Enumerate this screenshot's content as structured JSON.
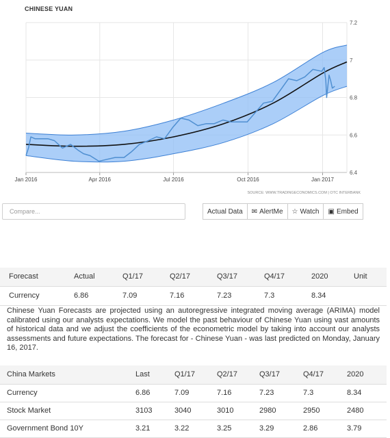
{
  "chart_data": {
    "type": "line",
    "title": "CHINESE YUAN",
    "source": "SOURCE: WWW.TRADINGECONOMICS.COM | OTC INTERBANK",
    "x_ticks": [
      "Jan 2016",
      "Apr 2016",
      "Jul 2016",
      "Oct 2016",
      "Jan 2017"
    ],
    "y_ticks": [
      "6.4",
      "6.6",
      "6.8",
      "7",
      "7.2"
    ],
    "ylim": [
      6.4,
      7.2
    ],
    "xlim": [
      "2016-01-01",
      "2017-01-31"
    ],
    "grid": true,
    "colors": {
      "line": "#4f8fd1",
      "band": "#8fbef5",
      "band_edge": "#3b7fd4",
      "trend": "#111111"
    },
    "series": [
      {
        "values": [
          [
            "2016-01-01",
            6.49
          ],
          [
            "2016-01-04",
            6.53
          ],
          [
            "2016-01-07",
            6.59
          ],
          [
            "2016-01-12",
            6.58
          ],
          [
            "2016-01-20",
            6.58
          ],
          [
            "2016-01-28",
            6.58
          ],
          [
            "2016-02-05",
            6.57
          ],
          [
            "2016-02-15",
            6.53
          ],
          [
            "2016-02-25",
            6.55
          ],
          [
            "2016-03-05",
            6.52
          ],
          [
            "2016-03-12",
            6.5
          ],
          [
            "2016-03-20",
            6.49
          ],
          [
            "2016-03-31",
            6.46
          ],
          [
            "2016-04-10",
            6.47
          ],
          [
            "2016-04-20",
            6.48
          ],
          [
            "2016-05-01",
            6.48
          ],
          [
            "2016-05-10",
            6.51
          ],
          [
            "2016-05-20",
            6.55
          ],
          [
            "2016-05-31",
            6.57
          ],
          [
            "2016-06-10",
            6.59
          ],
          [
            "2016-06-20",
            6.58
          ],
          [
            "2016-06-30",
            6.64
          ],
          [
            "2016-07-10",
            6.69
          ],
          [
            "2016-07-20",
            6.68
          ],
          [
            "2016-07-31",
            6.65
          ],
          [
            "2016-08-10",
            6.66
          ],
          [
            "2016-08-20",
            6.66
          ],
          [
            "2016-08-31",
            6.68
          ],
          [
            "2016-09-10",
            6.67
          ],
          [
            "2016-09-20",
            6.67
          ],
          [
            "2016-09-30",
            6.67
          ],
          [
            "2016-10-10",
            6.72
          ],
          [
            "2016-10-20",
            6.77
          ],
          [
            "2016-10-31",
            6.78
          ],
          [
            "2016-11-10",
            6.84
          ],
          [
            "2016-11-20",
            6.9
          ],
          [
            "2016-11-30",
            6.89
          ],
          [
            "2016-12-10",
            6.91
          ],
          [
            "2016-12-20",
            6.95
          ],
          [
            "2016-12-31",
            6.94
          ],
          [
            "2017-01-03",
            6.96
          ],
          [
            "2017-01-05",
            6.89
          ],
          [
            "2017-01-06",
            6.8
          ],
          [
            "2017-01-09",
            6.92
          ],
          [
            "2017-01-11",
            6.89
          ],
          [
            "2017-01-13",
            6.85
          ],
          [
            "2017-01-16",
            6.86
          ]
        ]
      }
    ],
    "trend": [
      [
        "2016-01-01",
        6.55
      ],
      [
        "2016-03-01",
        6.54
      ],
      [
        "2016-05-01",
        6.55
      ],
      [
        "2016-07-01",
        6.59
      ],
      [
        "2016-09-01",
        6.66
      ],
      [
        "2016-11-01",
        6.77
      ],
      [
        "2017-01-01",
        6.93
      ],
      [
        "2017-01-31",
        6.99
      ]
    ],
    "band": [
      [
        "2016-01-01",
        6.49,
        6.61
      ],
      [
        "2016-03-01",
        6.46,
        6.6
      ],
      [
        "2016-05-01",
        6.46,
        6.62
      ],
      [
        "2016-07-01",
        6.5,
        6.68
      ],
      [
        "2016-09-01",
        6.56,
        6.77
      ],
      [
        "2016-11-01",
        6.66,
        6.88
      ],
      [
        "2017-01-01",
        6.81,
        7.04
      ],
      [
        "2017-01-31",
        6.86,
        7.08
      ]
    ]
  },
  "toolbar": {
    "compare_placeholder": "Compare...",
    "actual_data": "Actual Data",
    "alertme": "AlertMe",
    "watch": "Watch",
    "embed": "Embed"
  },
  "forecast": {
    "headers": [
      "Forecast",
      "Actual",
      "Q1/17",
      "Q2/17",
      "Q3/17",
      "Q4/17",
      "2020",
      "Unit"
    ],
    "row": [
      "Currency",
      "6.86",
      "7.09",
      "7.16",
      "7.23",
      "7.3",
      "8.34",
      ""
    ],
    "description": "Chinese Yuan Forecasts are projected using an autoregressive integrated moving average (ARIMA) model calibrated using our analysts expectations. We model the past behaviour of Chinese Yuan using vast amounts of historical data and we adjust the coefficients of the econometric model by taking into account our analysts assessments and future expectations. The forecast for - Chinese Yuan - was last predicted on Monday, January 16, 2017."
  },
  "markets": {
    "headers": [
      "China Markets",
      "Last",
      "Q1/17",
      "Q2/17",
      "Q3/17",
      "Q4/17",
      "2020"
    ],
    "rows": [
      [
        "Currency",
        "6.86",
        "7.09",
        "7.16",
        "7.23",
        "7.3",
        "8.34"
      ],
      [
        "Stock Market",
        "3103",
        "3040",
        "3010",
        "2980",
        "2950",
        "2480"
      ],
      [
        "Government Bond 10Y",
        "3.21",
        "3.22",
        "3.25",
        "3.29",
        "2.86",
        "3.79"
      ]
    ]
  }
}
